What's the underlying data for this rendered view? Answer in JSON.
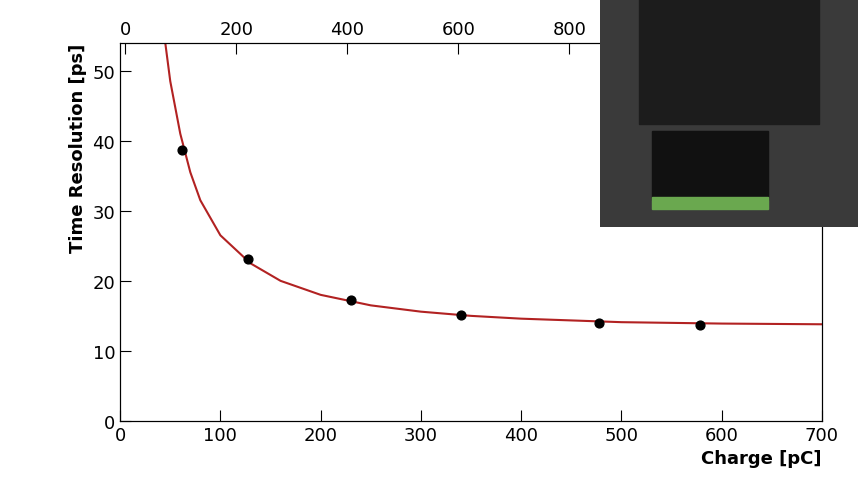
{
  "chart_data": {
    "type": "scatter",
    "x_label": "Charge [pC]",
    "y_label": "Time Resolution [ps]",
    "xlim": [
      0,
      700
    ],
    "xticks": [
      0,
      100,
      200,
      300,
      400,
      500,
      600,
      700
    ],
    "ylim": [
      0,
      54
    ],
    "yticks": [
      0,
      10,
      20,
      30,
      40,
      50
    ],
    "x2lim": [
      -9,
      1255
    ],
    "x2ticks": [
      0,
      200,
      400,
      600,
      800
    ],
    "grid": false,
    "series": [
      {
        "type": "scatter",
        "color": "#000000",
        "marker": "o",
        "x": [
          62,
          128,
          230,
          340,
          478,
          578
        ],
        "values": [
          38.7,
          23.1,
          17.2,
          15.1,
          14.0,
          13.7
        ]
      },
      {
        "type": "line",
        "color": "#b22222",
        "line_style": "solid",
        "x": [
          45,
          50,
          60,
          70,
          80,
          100,
          130,
          160,
          200,
          250,
          300,
          350,
          400,
          500,
          600,
          700
        ],
        "values": [
          54,
          48.5,
          41,
          35.5,
          31.5,
          26.5,
          22.5,
          20,
          18,
          16.5,
          15.6,
          15,
          14.6,
          14.1,
          13.9,
          13.8
        ]
      }
    ]
  }
}
